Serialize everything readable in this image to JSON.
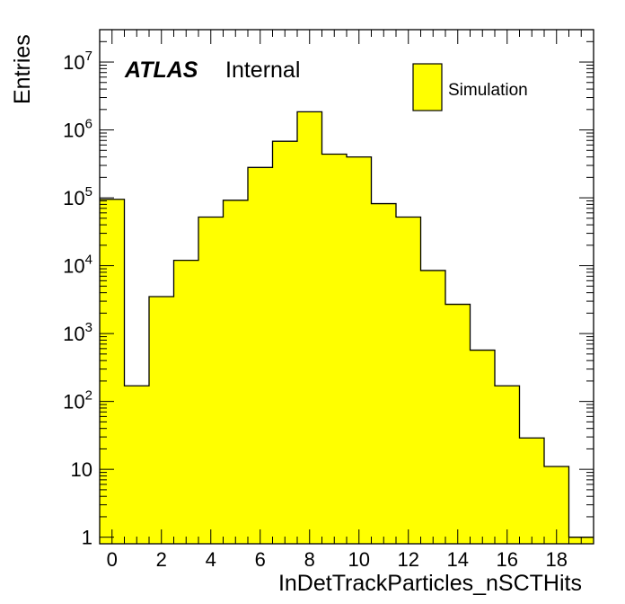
{
  "chart_data": {
    "type": "bar",
    "histogram": true,
    "xlabel": "InDetTrackParticles_nSCTHits",
    "ylabel": "Entries",
    "xlim": [
      -0.5,
      19.5
    ],
    "ylim": [
      0.8,
      30000000
    ],
    "yscale": "log",
    "bin_centers": [
      0,
      1,
      2,
      3,
      4,
      5,
      6,
      7,
      8,
      9,
      10,
      11,
      12,
      13,
      14,
      15,
      16,
      17,
      18,
      19
    ],
    "values": [
      95000,
      170,
      3500,
      12000,
      52000,
      92000,
      280000,
      680000,
      1850000,
      440000,
      400000,
      82000,
      52000,
      8500,
      2700,
      570,
      170,
      29,
      11,
      1
    ],
    "series": [
      {
        "name": "Simulation",
        "color": "#ffff00"
      }
    ],
    "x_ticks": [
      0,
      2,
      4,
      6,
      8,
      10,
      12,
      14,
      16,
      18
    ],
    "y_ticks": [
      {
        "value": 1,
        "base": "1",
        "exp": ""
      },
      {
        "value": 10,
        "base": "10",
        "exp": ""
      },
      {
        "value": 100,
        "base": "10",
        "exp": "2"
      },
      {
        "value": 1000,
        "base": "10",
        "exp": "3"
      },
      {
        "value": 10000,
        "base": "10",
        "exp": "4"
      },
      {
        "value": 100000,
        "base": "10",
        "exp": "5"
      },
      {
        "value": 1000000,
        "base": "10",
        "exp": "6"
      },
      {
        "value": 10000000,
        "base": "10",
        "exp": "7"
      }
    ],
    "legend": {
      "position": "top-right",
      "label": "Simulation"
    },
    "atlas_label": {
      "bold": "ATLAS",
      "text": "Internal"
    },
    "colors": {
      "fill": "#ffff00",
      "line": "#000000"
    }
  }
}
